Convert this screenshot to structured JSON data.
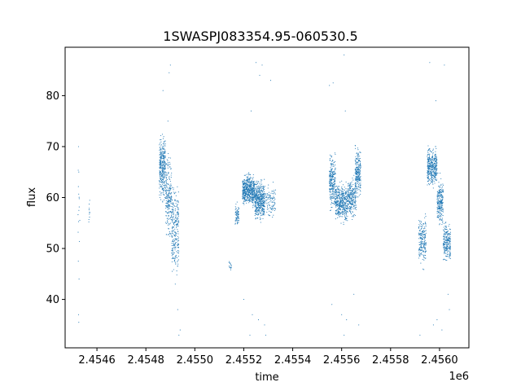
{
  "chart_data": {
    "type": "scatter",
    "title": "1SWASPJ083354.95-060530.5",
    "xlabel": "time",
    "ylabel": "flux",
    "x_offset_label": "1e6",
    "xlim": [
      2454470,
      2456120
    ],
    "ylim": [
      30.5,
      89.5
    ],
    "x_ticks": [
      2454600,
      2454800,
      2455000,
      2455200,
      2455400,
      2455600,
      2455800,
      2456000
    ],
    "x_tick_labels": [
      "2.4546",
      "2.4548",
      "2.4550",
      "2.4552",
      "2.4554",
      "2.4556",
      "2.4558",
      "2.4560"
    ],
    "y_ticks": [
      40,
      50,
      60,
      70,
      80
    ],
    "y_tick_labels": [
      "40",
      "50",
      "60",
      "70",
      "80"
    ],
    "grid": false,
    "legend": "none",
    "colors": {
      "points": "#1f77b4",
      "axes": "#000000",
      "background": "#ffffff"
    },
    "series": [
      {
        "marker": "point",
        "segments": [
          {
            "x_range": [
              2454522,
              2454530
            ],
            "y_center": 56,
            "y_spread": 14,
            "count": 12
          },
          {
            "x_range": [
              2454565,
              2454572
            ],
            "y_center": 58,
            "y_spread": 6,
            "count": 10
          },
          {
            "x_range": [
              2454855,
              2454880
            ],
            "y_center": 66,
            "y_spread": 8,
            "count": 320
          },
          {
            "x_range": [
              2454880,
              2454905
            ],
            "y_center": 60,
            "y_spread": 10,
            "count": 220
          },
          {
            "x_range": [
              2454905,
              2454935
            ],
            "y_center": 53,
            "y_spread": 12,
            "count": 260
          },
          {
            "x_range": [
              2455140,
              2455150
            ],
            "y_center": 46.5,
            "y_spread": 1.5,
            "count": 14
          },
          {
            "x_range": [
              2455165,
              2455180
            ],
            "y_center": 56.5,
            "y_spread": 3,
            "count": 70
          },
          {
            "x_range": [
              2455195,
              2455245
            ],
            "y_center": 61.5,
            "y_spread": 4,
            "count": 520
          },
          {
            "x_range": [
              2455245,
              2455285
            ],
            "y_center": 59.5,
            "y_spread": 5,
            "count": 420
          },
          {
            "x_range": [
              2455285,
              2455330
            ],
            "y_center": 59,
            "y_spread": 4,
            "count": 100
          },
          {
            "x_range": [
              2455550,
              2455575
            ],
            "y_center": 63,
            "y_spread": 7,
            "count": 260
          },
          {
            "x_range": [
              2455575,
              2455625
            ],
            "y_center": 59,
            "y_spread": 5,
            "count": 420
          },
          {
            "x_range": [
              2455625,
              2455660
            ],
            "y_center": 60,
            "y_spread": 5,
            "count": 240
          },
          {
            "x_range": [
              2455655,
              2455678
            ],
            "y_center": 65,
            "y_spread": 6,
            "count": 220
          },
          {
            "x_range": [
              2455915,
              2455945
            ],
            "y_center": 51.5,
            "y_spread": 6,
            "count": 200
          },
          {
            "x_range": [
              2455950,
              2455990
            ],
            "y_center": 66,
            "y_spread": 5,
            "count": 380
          },
          {
            "x_range": [
              2455990,
              2456015
            ],
            "y_center": 59,
            "y_spread": 6,
            "count": 240
          },
          {
            "x_range": [
              2456015,
              2456045
            ],
            "y_center": 51.5,
            "y_spread": 5,
            "count": 220
          }
        ],
        "outliers": [
          [
            2454525,
            70
          ],
          [
            2454526,
            65
          ],
          [
            2454524,
            47.5
          ],
          [
            2454527,
            44
          ],
          [
            2454525,
            37
          ],
          [
            2454526,
            35.5
          ],
          [
            2454870,
            81
          ],
          [
            2454900,
            86
          ],
          [
            2454895,
            84.5
          ],
          [
            2454930,
            38
          ],
          [
            2454940,
            34
          ],
          [
            2454935,
            33
          ],
          [
            2454890,
            75
          ],
          [
            2454920,
            43
          ],
          [
            2455250,
            86.5
          ],
          [
            2455275,
            86
          ],
          [
            2455265,
            84
          ],
          [
            2455230,
            77
          ],
          [
            2455200,
            40
          ],
          [
            2455235,
            37
          ],
          [
            2455260,
            36
          ],
          [
            2455285,
            35
          ],
          [
            2455290,
            33
          ],
          [
            2455225,
            33
          ],
          [
            2455310,
            83
          ],
          [
            2455320,
            63
          ],
          [
            2455550,
            82
          ],
          [
            2455565,
            82.5
          ],
          [
            2455610,
            88
          ],
          [
            2455615,
            77
          ],
          [
            2455560,
            39
          ],
          [
            2455600,
            37
          ],
          [
            2455620,
            36
          ],
          [
            2455610,
            33
          ],
          [
            2455650,
            41
          ],
          [
            2455670,
            35
          ],
          [
            2455920,
            33
          ],
          [
            2455960,
            86.5
          ],
          [
            2456020,
            86
          ],
          [
            2455985,
            79
          ],
          [
            2455975,
            35
          ],
          [
            2455990,
            36
          ],
          [
            2456010,
            34
          ],
          [
            2456035,
            41
          ],
          [
            2456040,
            38
          ]
        ]
      }
    ]
  }
}
